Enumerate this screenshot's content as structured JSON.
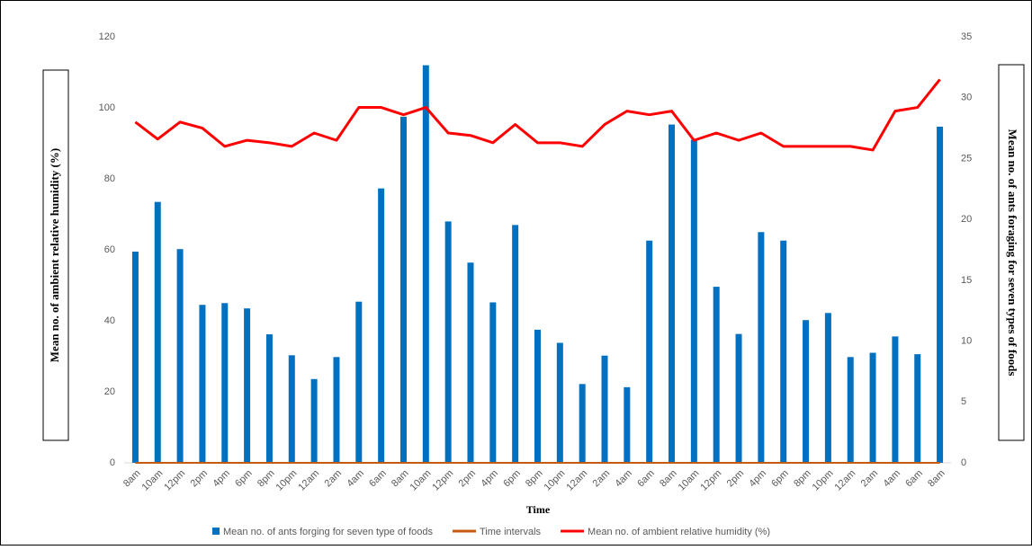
{
  "chart_data": {
    "type": "bar_line",
    "x_label": "Time",
    "y_label": "Mean no. of ambient relative humidity (%)",
    "y2_label": "Mean no. of ants foraging for seven types of foods",
    "categories": [
      "8am",
      "10am",
      "12pm",
      "2pm",
      "4pm",
      "6pm",
      "8pm",
      "10pm",
      "12am",
      "2am",
      "4am",
      "6am",
      "8am",
      "10am",
      "12pm",
      "2pm",
      "4pm",
      "6pm",
      "8pm",
      "10pm",
      "12am",
      "2am",
      "4am",
      "6am",
      "8am",
      "10am",
      "12pm",
      "2pm",
      "4pm",
      "6pm",
      "8pm",
      "10pm",
      "12am",
      "2am",
      "4am",
      "6am",
      "8am"
    ],
    "series": [
      {
        "name": "Mean no. of ants forging for seven type of foods",
        "type": "bar",
        "color": "#0070c0",
        "values": [
          59.5,
          73.5,
          60.2,
          44.5,
          45,
          43.5,
          36.2,
          30.3,
          23.6,
          29.8,
          45.4,
          77.3,
          97.5,
          112,
          68,
          56.4,
          45.2,
          67,
          37.5,
          33.8,
          22.2,
          30.2,
          21.3,
          62.6,
          95.3,
          91,
          49.6,
          36.3,
          65,
          62.6,
          40.2,
          42.2,
          29.8,
          31,
          35.6,
          30.6,
          94.7
        ]
      },
      {
        "name": "Time intervals",
        "type": "line",
        "color": "#c55a11",
        "values": [
          0,
          0,
          0,
          0,
          0,
          0,
          0,
          0,
          0,
          0,
          0,
          0,
          0,
          0,
          0,
          0,
          0,
          0,
          0,
          0,
          0,
          0,
          0,
          0,
          0,
          0,
          0,
          0,
          0,
          0,
          0,
          0,
          0,
          0,
          0,
          0,
          0
        ]
      },
      {
        "name": "Mean no. of  ambient relative humidity (%)",
        "type": "line",
        "axis": "y2",
        "color": "#ff0000",
        "values": [
          28,
          26.6,
          28,
          27.5,
          26,
          26.5,
          26.3,
          26,
          27.1,
          26.5,
          29.2,
          29.2,
          28.6,
          29.2,
          27.1,
          26.9,
          26.3,
          27.8,
          26.3,
          26.3,
          26,
          27.8,
          28.9,
          28.6,
          28.9,
          26.5,
          27.1,
          26.5,
          27.1,
          26,
          26,
          26,
          26,
          25.7,
          28.9,
          29.2,
          31.5
        ]
      }
    ],
    "ylim": [
      0,
      120
    ],
    "yticks": [
      0,
      20,
      40,
      60,
      80,
      100,
      120
    ],
    "y2lim": [
      0,
      35
    ],
    "y2ticks": [
      0,
      5,
      10,
      15,
      20,
      25,
      30,
      35
    ],
    "grid": false
  }
}
